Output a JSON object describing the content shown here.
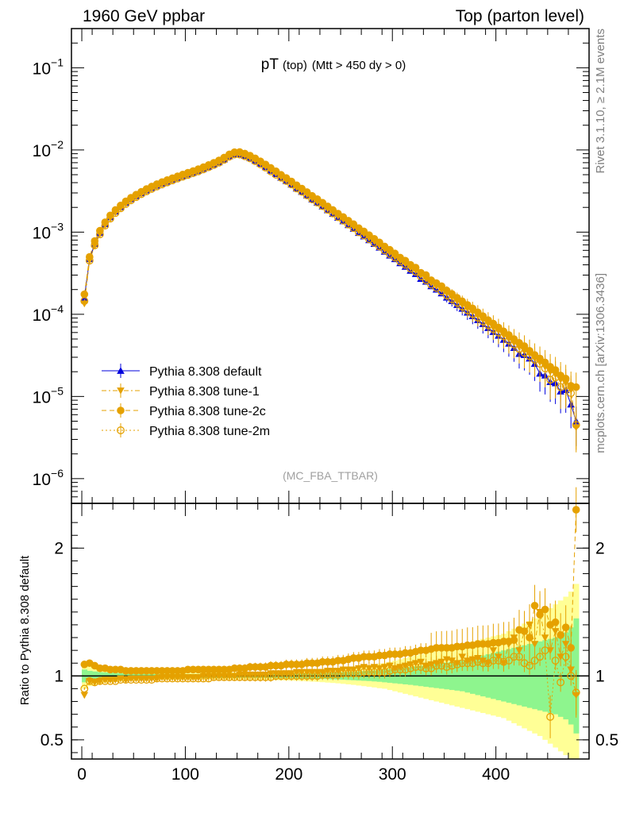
{
  "header": {
    "left": "1960 GeV ppbar",
    "right": "Top (parton level)"
  },
  "title": {
    "main": "pT",
    "sub": "(top)",
    "cuts": "(Mtt > 450 dy > 0)"
  },
  "side_labels": {
    "rivet": "Rivet 3.1.10, ≥ 2.1M events",
    "mcplots": "mcplots.cern.ch [arXiv:1306.3436]"
  },
  "analysis_label": "(MC_FBA_TTBAR)",
  "ratio_ylabel": "Ratio to Pythia 8.308 default",
  "colors": {
    "default": "#0000dd",
    "tunes": "#e5a100",
    "band_inner": "#8ef58e",
    "band_outer": "#ffff96"
  },
  "chart_data": [
    {
      "type": "line",
      "panel": "main",
      "yscale": "log",
      "xlim": [
        -10,
        490
      ],
      "ylim": [
        5e-07,
        0.3
      ],
      "ytick_labels": [
        "10^-6",
        "10^-5",
        "10^-4",
        "10^-3",
        "10^-2",
        "10^-1"
      ],
      "legend": {
        "position": "lower-left",
        "entries": [
          "Pythia 8.308 default",
          "Pythia 8.308 tune-1",
          "Pythia 8.308 tune-2c",
          "Pythia 8.308 tune-2m"
        ]
      },
      "x": [
        2.5,
        7.5,
        12.5,
        17.5,
        22.5,
        27.5,
        32.5,
        37.5,
        42.5,
        47.5,
        52.5,
        57.5,
        62.5,
        67.5,
        72.5,
        77.5,
        82.5,
        87.5,
        92.5,
        97.5,
        102.5,
        107.5,
        112.5,
        117.5,
        122.5,
        127.5,
        132.5,
        137.5,
        142.5,
        147.5,
        152.5,
        157.5,
        162.5,
        167.5,
        172.5,
        177.5,
        182.5,
        187.5,
        192.5,
        197.5,
        202.5,
        207.5,
        212.5,
        217.5,
        222.5,
        227.5,
        232.5,
        237.5,
        242.5,
        247.5,
        252.5,
        257.5,
        262.5,
        267.5,
        272.5,
        277.5,
        282.5,
        287.5,
        292.5,
        297.5,
        302.5,
        307.5,
        312.5,
        317.5,
        322.5,
        327.5,
        332.5,
        337.5,
        342.5,
        347.5,
        352.5,
        357.5,
        362.5,
        367.5,
        372.5,
        377.5,
        382.5,
        387.5,
        392.5,
        397.5,
        402.5,
        407.5,
        412.5,
        417.5,
        422.5,
        427.5,
        432.5,
        437.5,
        442.5,
        447.5,
        452.5,
        457.5,
        462.5,
        467.5,
        472.5,
        477.5
      ],
      "series": [
        {
          "name": "Pythia 8.308 default",
          "marker": "triangle-up",
          "values": [
            0.00016,
            0.00047,
            0.00072,
            0.00098,
            0.00125,
            0.00152,
            0.00178,
            0.00202,
            0.00228,
            0.00252,
            0.00275,
            0.00298,
            0.00322,
            0.00345,
            0.00368,
            0.0039,
            0.00412,
            0.00435,
            0.00458,
            0.00482,
            0.00505,
            0.0053,
            0.00558,
            0.0059,
            0.00625,
            0.00665,
            0.0071,
            0.0077,
            0.0084,
            0.0089,
            0.0089,
            0.0085,
            0.008,
            0.0074,
            0.0068,
            0.0062,
            0.0056,
            0.0051,
            0.0046,
            0.0042,
            0.0038,
            0.0034,
            0.0031,
            0.0028,
            0.0025,
            0.00228,
            0.00206,
            0.00185,
            0.00167,
            0.0015,
            0.00136,
            0.00122,
            0.0011,
            0.00098,
            0.00089,
            0.0008,
            0.00072,
            0.00065,
            0.00058,
            0.00052,
            0.00047,
            0.00042,
            0.00038,
            0.00034,
            0.00031,
            0.00027,
            0.00025,
            0.00022,
            0.0002,
            0.00018,
            0.00016,
            0.000145,
            0.00013,
            0.000117,
            0.000105,
            9.5e-05,
            8.5e-05,
            7.6e-05,
            6.8e-05,
            6.1e-05,
            5.5e-05,
            4.9e-05,
            4.4e-05,
            3.9e-05,
            3.3e-05,
            3.2e-05,
            2.9e-05,
            2.5e-05,
            1.9e-05,
            1.8e-05,
            1.5e-05,
            1.45e-05,
            1.15e-05,
            1.2e-05,
            8e-06,
            5e-06
          ]
        },
        {
          "name": "Pythia 8.308 tune-1",
          "marker": "triangle-down",
          "values": [
            0.000135,
            0.00045,
            0.00068,
            0.00095,
            0.00121,
            0.00147,
            0.00173,
            0.00197,
            0.00222,
            0.00246,
            0.0027,
            0.00292,
            0.00316,
            0.00339,
            0.00362,
            0.00385,
            0.00407,
            0.0043,
            0.00453,
            0.00477,
            0.005,
            0.00526,
            0.00555,
            0.00588,
            0.00624,
            0.00665,
            0.00711,
            0.00772,
            0.00843,
            0.00895,
            0.00897,
            0.00858,
            0.00808,
            0.00749,
            0.00689,
            0.00629,
            0.00569,
            0.00519,
            0.00469,
            0.00429,
            0.00389,
            0.00349,
            0.00318,
            0.00288,
            0.00258,
            0.00235,
            0.00213,
            0.00192,
            0.00174,
            0.00157,
            0.00143,
            0.00128,
            0.00116,
            0.00104,
            0.00095,
            0.00085,
            0.00077,
            0.00069,
            0.00062,
            0.00056,
            0.0005,
            0.00045,
            0.00041,
            0.00037,
            0.00034,
            0.0003,
            0.00027,
            0.00024,
            0.00022,
            0.0002,
            0.00018,
            0.000162,
            0.000145,
            0.000131,
            0.000118,
            0.000107,
            9.6e-05,
            8.6e-05,
            7.7e-05,
            6.9e-05,
            6.3e-05,
            5.6e-05,
            5e-05,
            4.5e-05,
            4e-05,
            3.6e-05,
            3.3e-05,
            2.9e-05,
            2.6e-05,
            2.3e-05,
            2e-05,
            1.85e-05,
            1.6e-05,
            1.45e-05,
            1.2e-05,
            4.2e-06
          ]
        },
        {
          "name": "Pythia 8.308 tune-2c",
          "marker": "circle",
          "values": [
            0.000175,
            0.0005,
            0.00078,
            0.00104,
            0.00132,
            0.0016,
            0.00186,
            0.00211,
            0.00237,
            0.00262,
            0.00286,
            0.0031,
            0.00335,
            0.00359,
            0.00384,
            0.00407,
            0.0043,
            0.00454,
            0.00478,
            0.00503,
            0.00528,
            0.00554,
            0.00584,
            0.00618,
            0.00656,
            0.00698,
            0.00746,
            0.00809,
            0.00884,
            0.00939,
            0.00945,
            0.00904,
            0.00853,
            0.00791,
            0.00728,
            0.00666,
            0.00605,
            0.00551,
            0.00498,
            0.00456,
            0.00414,
            0.00372,
            0.00339,
            0.00307,
            0.00276,
            0.00252,
            0.00228,
            0.00206,
            0.00186,
            0.00168,
            0.00153,
            0.00138,
            0.00125,
            0.00112,
            0.00102,
            0.00092,
            0.00083,
            0.00075,
            0.00067,
            0.00061,
            0.00055,
            0.00049,
            0.00045,
            0.0004,
            0.00037,
            0.00032,
            0.0003,
            0.00026,
            0.00024,
            0.00022,
            0.000195,
            0.000177,
            0.000159,
            0.000144,
            0.00013,
            0.000118,
            0.000106,
            9.5e-05,
            8.5e-05,
            7.7e-05,
            6.9e-05,
            6.2e-05,
            5.6e-05,
            5e-05,
            4.5e-05,
            4.1e-05,
            3.6e-05,
            3.2e-05,
            2.9e-05,
            2.6e-05,
            2.3e-05,
            2.1e-05,
            1.8e-05,
            1.65e-05,
            1.35e-05,
            1.3e-05
          ]
        },
        {
          "name": "Pythia 8.308 tune-2m",
          "marker": "open-circle",
          "values": [
            0.000145,
            0.00045,
            0.00069,
            0.00094,
            0.0012,
            0.00146,
            0.00171,
            0.00195,
            0.0022,
            0.00244,
            0.00267,
            0.0029,
            0.00313,
            0.00336,
            0.00359,
            0.00381,
            0.00403,
            0.00426,
            0.00449,
            0.00473,
            0.00496,
            0.00521,
            0.00549,
            0.00581,
            0.00616,
            0.00656,
            0.00701,
            0.0076,
            0.0083,
            0.0088,
            0.0088,
            0.0084,
            0.0079,
            0.0073,
            0.0067,
            0.0061,
            0.0055,
            0.005,
            0.0046,
            0.0042,
            0.0038,
            0.0034,
            0.0031,
            0.0028,
            0.0025,
            0.00229,
            0.00207,
            0.00187,
            0.00169,
            0.00152,
            0.00138,
            0.00124,
            0.00112,
            0.001,
            0.00091,
            0.00082,
            0.00074,
            0.00067,
            0.0006,
            0.00054,
            0.00049,
            0.00044,
            0.0004,
            0.00036,
            0.00033,
            0.00029,
            0.00026,
            0.00023,
            0.00021,
            0.00019,
            0.00017,
            0.000153,
            0.000138,
            0.000124,
            0.000112,
            0.000101,
            9.1e-05,
            8.2e-05,
            7.4e-05,
            6.6e-05,
            6e-05,
            5.4e-05,
            4.8e-05,
            4.3e-05,
            3.8e-05,
            3.4e-05,
            3.1e-05,
            2.8e-05,
            2.5e-05,
            2.2e-05,
            1.6e-05,
            1.7e-05,
            1.3e-05,
            1.35e-05,
            1.1e-05,
            4.5e-06
          ]
        }
      ]
    },
    {
      "type": "line",
      "panel": "ratio",
      "ylabel": "Ratio to Pythia 8.308 default",
      "xlim": [
        -10,
        490
      ],
      "ylim": [
        0.35,
        2.35
      ],
      "xtick_labels": [
        "0",
        "100",
        "200",
        "300",
        "400"
      ],
      "ytick_labels": [
        "0.5",
        "1",
        "2"
      ],
      "reference_line": 1,
      "band_inner_halfwidth": [
        0.05,
        0.04,
        0.035,
        0.03,
        0.028,
        0.026,
        0.024,
        0.022,
        0.02,
        0.019,
        0.018,
        0.017,
        0.016,
        0.015,
        0.015,
        0.015,
        0.015,
        0.015,
        0.015,
        0.015,
        0.015,
        0.015,
        0.015,
        0.015,
        0.015,
        0.014,
        0.014,
        0.014,
        0.014,
        0.014,
        0.014,
        0.014,
        0.014,
        0.015,
        0.015,
        0.015,
        0.016,
        0.016,
        0.017,
        0.017,
        0.018,
        0.019,
        0.02,
        0.021,
        0.022,
        0.023,
        0.024,
        0.025,
        0.027,
        0.028,
        0.03,
        0.032,
        0.034,
        0.036,
        0.038,
        0.04,
        0.043,
        0.046,
        0.05,
        0.054,
        0.058,
        0.062,
        0.066,
        0.07,
        0.075,
        0.08,
        0.085,
        0.09,
        0.095,
        0.1,
        0.105,
        0.11,
        0.115,
        0.12,
        0.13,
        0.14,
        0.15,
        0.16,
        0.17,
        0.18,
        0.19,
        0.2,
        0.21,
        0.22,
        0.23,
        0.24,
        0.25,
        0.26,
        0.27,
        0.28,
        0.29,
        0.3,
        0.32,
        0.34,
        0.38,
        0.45
      ],
      "band_outer_halfwidth": [
        0.1,
        0.08,
        0.07,
        0.06,
        0.055,
        0.05,
        0.047,
        0.044,
        0.041,
        0.038,
        0.036,
        0.034,
        0.032,
        0.031,
        0.03,
        0.03,
        0.03,
        0.03,
        0.03,
        0.03,
        0.03,
        0.03,
        0.029,
        0.029,
        0.028,
        0.028,
        0.028,
        0.028,
        0.028,
        0.028,
        0.028,
        0.028,
        0.029,
        0.03,
        0.031,
        0.032,
        0.033,
        0.034,
        0.035,
        0.036,
        0.037,
        0.038,
        0.04,
        0.042,
        0.044,
        0.046,
        0.049,
        0.052,
        0.055,
        0.058,
        0.062,
        0.066,
        0.07,
        0.075,
        0.08,
        0.085,
        0.09,
        0.096,
        0.1,
        0.11,
        0.12,
        0.13,
        0.14,
        0.15,
        0.16,
        0.17,
        0.18,
        0.19,
        0.2,
        0.21,
        0.22,
        0.23,
        0.24,
        0.25,
        0.26,
        0.27,
        0.28,
        0.29,
        0.3,
        0.31,
        0.32,
        0.33,
        0.35,
        0.37,
        0.39,
        0.41,
        0.43,
        0.45,
        0.47,
        0.5,
        0.53,
        0.56,
        0.59,
        0.62,
        0.66,
        0.72
      ],
      "series": [
        {
          "name": "Pythia 8.308 tune-1",
          "values": [
            0.85,
            0.96,
            0.95,
            0.96,
            0.97,
            0.97,
            0.97,
            0.98,
            0.97,
            0.98,
            0.98,
            0.98,
            0.98,
            0.98,
            0.98,
            0.99,
            0.99,
            0.99,
            0.99,
            0.99,
            0.99,
            0.99,
            0.99,
            1.0,
            1.0,
            1.0,
            1.0,
            1.0,
            1.0,
            1.0,
            1.01,
            1.01,
            1.01,
            1.01,
            1.01,
            1.01,
            1.02,
            1.02,
            1.02,
            1.02,
            1.02,
            1.03,
            1.03,
            1.03,
            1.03,
            1.03,
            1.03,
            1.04,
            1.04,
            1.04,
            1.05,
            1.05,
            1.05,
            1.06,
            1.07,
            1.06,
            1.07,
            1.06,
            1.07,
            1.08,
            1.06,
            1.07,
            1.08,
            1.09,
            1.1,
            1.11,
            1.08,
            1.09,
            1.1,
            1.11,
            1.13,
            1.12,
            1.1,
            1.15,
            1.12,
            1.13,
            1.14,
            1.12,
            1.1,
            1.2,
            1.15,
            1.1,
            1.25,
            1.3,
            1.2,
            1.35,
            1.4,
            1.25,
            1.5,
            1.3,
            1.2,
            1.35,
            1.15,
            1.25,
            1.05,
            0.85
          ]
        },
        {
          "name": "Pythia 8.308 tune-2c",
          "values": [
            1.09,
            1.1,
            1.08,
            1.06,
            1.06,
            1.05,
            1.05,
            1.05,
            1.04,
            1.04,
            1.04,
            1.04,
            1.04,
            1.04,
            1.04,
            1.04,
            1.04,
            1.04,
            1.04,
            1.04,
            1.05,
            1.05,
            1.05,
            1.05,
            1.05,
            1.05,
            1.05,
            1.05,
            1.05,
            1.06,
            1.06,
            1.06,
            1.07,
            1.07,
            1.07,
            1.07,
            1.08,
            1.08,
            1.08,
            1.09,
            1.09,
            1.09,
            1.09,
            1.1,
            1.1,
            1.1,
            1.11,
            1.11,
            1.11,
            1.12,
            1.12,
            1.13,
            1.14,
            1.14,
            1.15,
            1.15,
            1.15,
            1.16,
            1.16,
            1.17,
            1.17,
            1.17,
            1.18,
            1.18,
            1.19,
            1.2,
            1.2,
            1.21,
            1.22,
            1.22,
            1.22,
            1.22,
            1.23,
            1.23,
            1.24,
            1.24,
            1.25,
            1.25,
            1.25,
            1.26,
            1.26,
            1.27,
            1.27,
            1.28,
            1.36,
            1.35,
            1.3,
            1.55,
            1.48,
            1.52,
            1.4,
            1.42,
            1.32,
            1.38,
            1.22,
            2.3
          ]
        },
        {
          "name": "Pythia 8.308 tune-2m",
          "values": [
            0.9,
            0.96,
            0.95,
            0.96,
            0.96,
            0.96,
            0.96,
            0.97,
            0.97,
            0.97,
            0.97,
            0.97,
            0.97,
            0.97,
            0.98,
            0.98,
            0.98,
            0.98,
            0.98,
            0.98,
            0.98,
            0.98,
            0.98,
            0.98,
            0.98,
            0.99,
            0.99,
            0.99,
            0.99,
            0.99,
            0.99,
            0.99,
            0.99,
            0.99,
            0.99,
            0.99,
            0.99,
            1.0,
            1.0,
            1.0,
            1.0,
            1.0,
            1.0,
            1.0,
            1.0,
            1.0,
            1.01,
            1.01,
            1.01,
            1.01,
            1.02,
            1.02,
            1.02,
            1.02,
            1.03,
            1.03,
            1.03,
            1.03,
            1.03,
            1.04,
            1.05,
            1.05,
            1.05,
            1.06,
            1.07,
            1.07,
            1.06,
            1.06,
            1.08,
            1.08,
            1.07,
            1.08,
            1.09,
            1.1,
            1.1,
            1.1,
            1.11,
            1.1,
            1.1,
            1.12,
            1.12,
            1.11,
            1.12,
            1.15,
            1.15,
            1.1,
            1.08,
            1.12,
            1.15,
            1.2,
            0.68,
            1.12,
            0.95,
            1.15,
            1.0,
            0.87
          ]
        }
      ]
    }
  ]
}
